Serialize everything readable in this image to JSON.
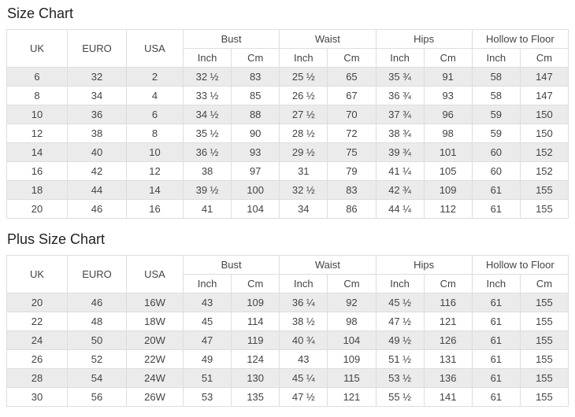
{
  "styles": {
    "stripe_color": "#ebebeb",
    "border_color": "#dddddd",
    "cell_text_color": "#444444",
    "title_color": "#222222",
    "background": "#ffffff"
  },
  "tables": [
    {
      "title": "Size Chart",
      "plain_headers": [
        "UK",
        "EURO",
        "USA"
      ],
      "measure_groups": [
        "Bust",
        "Waist",
        "Hips",
        "Hollow to Floor"
      ],
      "unit_headers": [
        "Inch",
        "Cm"
      ],
      "rows": [
        [
          "6",
          "32",
          "2",
          "32 ½",
          "83",
          "25 ½",
          "65",
          "35 ¾",
          "91",
          "58",
          "147"
        ],
        [
          "8",
          "34",
          "4",
          "33 ½",
          "85",
          "26 ½",
          "67",
          "36 ¾",
          "93",
          "58",
          "147"
        ],
        [
          "10",
          "36",
          "6",
          "34 ½",
          "88",
          "27 ½",
          "70",
          "37 ¾",
          "96",
          "59",
          "150"
        ],
        [
          "12",
          "38",
          "8",
          "35 ½",
          "90",
          "28 ½",
          "72",
          "38 ¾",
          "98",
          "59",
          "150"
        ],
        [
          "14",
          "40",
          "10",
          "36 ½",
          "93",
          "29 ½",
          "75",
          "39 ¾",
          "101",
          "60",
          "152"
        ],
        [
          "16",
          "42",
          "12",
          "38",
          "97",
          "31",
          "79",
          "41 ¼",
          "105",
          "60",
          "152"
        ],
        [
          "18",
          "44",
          "14",
          "39 ½",
          "100",
          "32 ½",
          "83",
          "42 ¾",
          "109",
          "61",
          "155"
        ],
        [
          "20",
          "46",
          "16",
          "41",
          "104",
          "34",
          "86",
          "44 ¼",
          "112",
          "61",
          "155"
        ]
      ]
    },
    {
      "title": "Plus Size Chart",
      "plain_headers": [
        "UK",
        "EURO",
        "USA"
      ],
      "measure_groups": [
        "Bust",
        "Waist",
        "Hips",
        "Hollow to Floor"
      ],
      "unit_headers": [
        "Inch",
        "Cm"
      ],
      "rows": [
        [
          "20",
          "46",
          "16W",
          "43",
          "109",
          "36 ¼",
          "92",
          "45 ½",
          "116",
          "61",
          "155"
        ],
        [
          "22",
          "48",
          "18W",
          "45",
          "114",
          "38 ½",
          "98",
          "47 ½",
          "121",
          "61",
          "155"
        ],
        [
          "24",
          "50",
          "20W",
          "47",
          "119",
          "40 ¾",
          "104",
          "49 ½",
          "126",
          "61",
          "155"
        ],
        [
          "26",
          "52",
          "22W",
          "49",
          "124",
          "43",
          "109",
          "51 ½",
          "131",
          "61",
          "155"
        ],
        [
          "28",
          "54",
          "24W",
          "51",
          "130",
          "45 ¼",
          "115",
          "53 ½",
          "136",
          "61",
          "155"
        ],
        [
          "30",
          "56",
          "26W",
          "53",
          "135",
          "47 ½",
          "121",
          "55 ½",
          "141",
          "61",
          "155"
        ]
      ]
    }
  ]
}
